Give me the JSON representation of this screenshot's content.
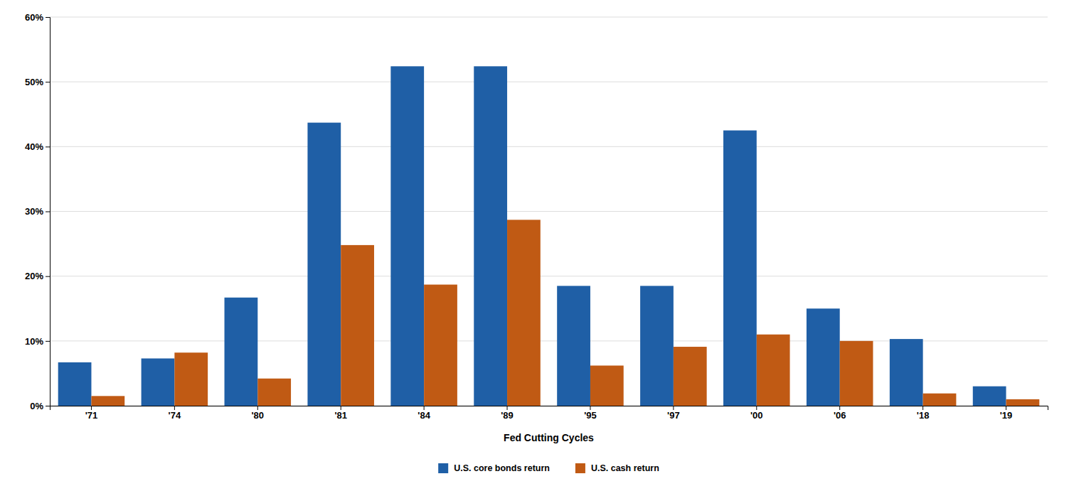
{
  "chart_data": {
    "type": "bar",
    "xlabel": "Fed Cutting Cycles",
    "categories": [
      "'71",
      "'74",
      "'80",
      "'81",
      "'84",
      "'89",
      "'95",
      "'97",
      "'00",
      "'06",
      "'18",
      "'19"
    ],
    "series": [
      {
        "name": "U.S. core bonds return",
        "color": "#1F5FA6",
        "values": [
          0.067,
          0.073,
          0.167,
          0.437,
          0.524,
          0.524,
          0.185,
          0.185,
          0.425,
          0.15,
          0.103,
          0.03
        ]
      },
      {
        "name": "U.S. cash return",
        "color": "#C05A14",
        "values": [
          0.015,
          0.082,
          0.042,
          0.248,
          0.187,
          0.287,
          0.062,
          0.091,
          0.11,
          0.1,
          0.019,
          0.01
        ]
      }
    ],
    "ylim": [
      0,
      0.6
    ],
    "yticks": [
      {
        "value": 0,
        "label": "0%"
      },
      {
        "value": 0.1,
        "label": "10%"
      },
      {
        "value": 0.2,
        "label": "20%"
      },
      {
        "value": 0.3,
        "label": "30%"
      },
      {
        "value": 0.4,
        "label": "40%"
      },
      {
        "value": 0.5,
        "label": "50%"
      },
      {
        "value": 0.6,
        "label": "60%"
      }
    ],
    "grid": true,
    "legend": "bottom"
  }
}
